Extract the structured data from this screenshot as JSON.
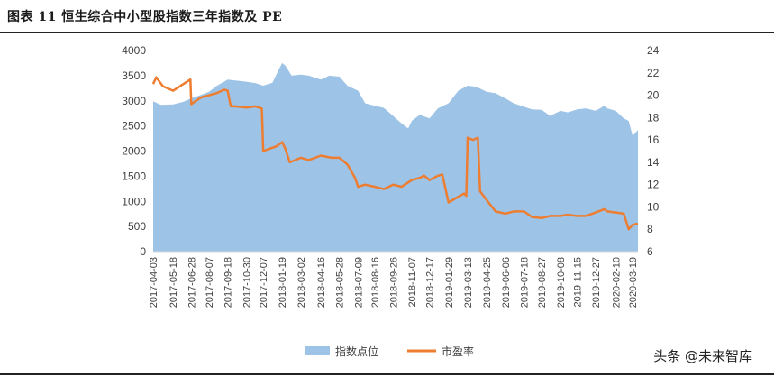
{
  "header": {
    "title": "图表 11 恒生综合中小型股指数三年指数及 PE"
  },
  "watermark": "头条 @未来智库",
  "chart_data": {
    "type": "area+line",
    "title": "",
    "legend_placement": "bottom-center",
    "grid": false,
    "colors": {
      "area": "#9dc3e6",
      "line": "#ed7d31"
    },
    "y_left": {
      "range": [
        0,
        4000
      ],
      "ticks": [
        0,
        500,
        1000,
        1500,
        2000,
        2500,
        3000,
        3500,
        4000
      ]
    },
    "y_right": {
      "range": [
        6,
        24
      ],
      "ticks": [
        6,
        8,
        10,
        12,
        14,
        16,
        18,
        20,
        22,
        24
      ]
    },
    "x_ticks": [
      "2017-04-03",
      "2017-05-18",
      "2017-06-28",
      "2017-08-07",
      "2017-09-18",
      "2017-10-30",
      "2017-12-07",
      "2018-01-19",
      "2018-03-02",
      "2018-04-16",
      "2018-05-28",
      "2018-07-09",
      "2018-08-16",
      "2018-09-26",
      "2018-11-07",
      "2018-12-17",
      "2019-01-29",
      "2019-03-13",
      "2019-04-25",
      "2019-06-06",
      "2019-07-18",
      "2019-08-27",
      "2019-10-08",
      "2019-11-15",
      "2019-12-27",
      "2020-02-10",
      "2020-03-19"
    ],
    "series": [
      {
        "name": "指数点位",
        "type": "area",
        "axis": "left",
        "x": [
          "2017-04-03",
          "2017-04-20",
          "2017-05-18",
          "2017-06-10",
          "2017-06-28",
          "2017-07-20",
          "2017-08-07",
          "2017-08-25",
          "2017-09-18",
          "2017-10-10",
          "2017-10-30",
          "2017-11-20",
          "2017-12-07",
          "2017-12-28",
          "2018-01-10",
          "2018-01-19",
          "2018-01-26",
          "2018-02-09",
          "2018-03-02",
          "2018-03-20",
          "2018-04-16",
          "2018-05-05",
          "2018-05-28",
          "2018-06-15",
          "2018-07-09",
          "2018-07-25",
          "2018-08-16",
          "2018-09-05",
          "2018-09-26",
          "2018-10-15",
          "2018-10-30",
          "2018-11-07",
          "2018-11-25",
          "2018-12-17",
          "2019-01-05",
          "2019-01-29",
          "2019-02-20",
          "2019-03-13",
          "2019-04-01",
          "2019-04-25",
          "2019-05-15",
          "2019-06-06",
          "2019-06-25",
          "2019-07-18",
          "2019-08-05",
          "2019-08-27",
          "2019-09-15",
          "2019-10-08",
          "2019-10-25",
          "2019-11-15",
          "2019-12-05",
          "2019-12-27",
          "2020-01-15",
          "2020-01-22",
          "2020-02-10",
          "2020-02-28",
          "2020-03-10",
          "2020-03-19",
          "2020-03-31"
        ],
        "values": [
          2990,
          2920,
          2930,
          2980,
          3050,
          3120,
          3180,
          3300,
          3420,
          3400,
          3380,
          3350,
          3300,
          3360,
          3600,
          3750,
          3700,
          3500,
          3520,
          3500,
          3420,
          3500,
          3480,
          3300,
          3200,
          2950,
          2900,
          2860,
          2700,
          2550,
          2450,
          2600,
          2720,
          2650,
          2850,
          2950,
          3200,
          3300,
          3280,
          3180,
          3150,
          3050,
          2950,
          2880,
          2830,
          2820,
          2700,
          2800,
          2770,
          2830,
          2850,
          2800,
          2900,
          2850,
          2800,
          2650,
          2600,
          2300,
          2420
        ]
      },
      {
        "name": "市盈率",
        "type": "line",
        "axis": "right",
        "x": [
          "2017-04-03",
          "2017-04-10",
          "2017-04-25",
          "2017-05-18",
          "2017-06-10",
          "2017-06-26",
          "2017-06-28",
          "2017-07-05",
          "2017-07-20",
          "2017-08-07",
          "2017-08-25",
          "2017-09-10",
          "2017-09-18",
          "2017-09-25",
          "2017-10-05",
          "2017-10-30",
          "2017-11-20",
          "2017-12-04",
          "2017-12-07",
          "2017-12-20",
          "2018-01-05",
          "2018-01-19",
          "2018-01-26",
          "2018-02-05",
          "2018-03-02",
          "2018-03-20",
          "2018-04-16",
          "2018-05-10",
          "2018-05-28",
          "2018-06-15",
          "2018-07-02",
          "2018-07-09",
          "2018-07-25",
          "2018-08-16",
          "2018-09-05",
          "2018-09-26",
          "2018-10-15",
          "2018-11-07",
          "2018-11-25",
          "2018-12-05",
          "2018-12-17",
          "2019-01-05",
          "2019-01-15",
          "2019-01-29",
          "2019-02-15",
          "2019-03-05",
          "2019-03-10",
          "2019-03-13",
          "2019-03-25",
          "2019-04-05",
          "2019-04-10",
          "2019-04-25",
          "2019-05-15",
          "2019-06-06",
          "2019-06-25",
          "2019-07-18",
          "2019-08-05",
          "2019-08-27",
          "2019-09-15",
          "2019-10-08",
          "2019-10-25",
          "2019-11-15",
          "2019-12-05",
          "2019-12-27",
          "2020-01-15",
          "2020-01-22",
          "2020-02-10",
          "2020-02-28",
          "2020-03-10",
          "2020-03-19",
          "2020-03-31"
        ],
        "values": [
          21.0,
          21.6,
          20.8,
          20.4,
          21.0,
          21.4,
          19.2,
          19.4,
          19.8,
          20.0,
          20.2,
          20.5,
          20.4,
          19.0,
          19.0,
          18.9,
          19.0,
          18.8,
          15.0,
          15.2,
          15.4,
          15.8,
          15.2,
          14.0,
          14.4,
          14.2,
          14.6,
          14.4,
          14.4,
          13.8,
          12.6,
          11.8,
          12.0,
          11.8,
          11.6,
          12.0,
          11.8,
          12.4,
          12.6,
          12.8,
          12.4,
          12.8,
          12.9,
          10.4,
          10.8,
          11.2,
          11.0,
          16.2,
          16.0,
          16.2,
          11.4,
          10.6,
          9.6,
          9.4,
          9.6,
          9.6,
          9.1,
          9.0,
          9.2,
          9.2,
          9.3,
          9.2,
          9.2,
          9.5,
          9.8,
          9.6,
          9.5,
          9.4,
          8.0,
          8.4,
          8.5
        ]
      }
    ]
  }
}
